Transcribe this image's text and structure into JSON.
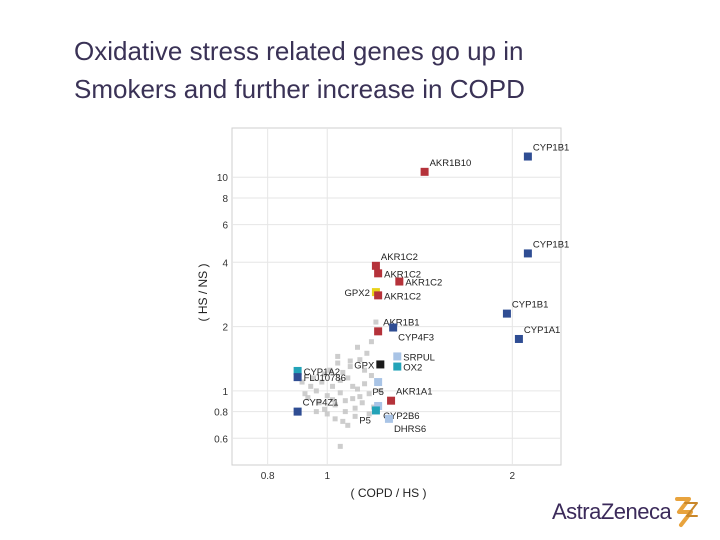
{
  "slide": {
    "title_line1": "Oxidative stress related genes go up in",
    "title_line2": "Smokers and further increase in COPD"
  },
  "brand": {
    "logo_text": "AstraZeneca",
    "accent_color": "#e8a33d",
    "text_color": "#3b2a5a"
  },
  "colors": {
    "red": "#b5323a",
    "blue": "#2f4d93",
    "light_blue": "#a9c4e6",
    "teal": "#23a3b8",
    "yellow": "#e8d21a",
    "black": "#1a1a1a",
    "gray": "#c4c4c4"
  },
  "chart_data": {
    "type": "scatter",
    "title": "",
    "xlabel": "( COPD / HS )",
    "ylabel": "( HS / NS )",
    "xscale": "log",
    "yscale": "log",
    "xlim": [
      0.7,
      2.4
    ],
    "ylim": [
      0.45,
      17
    ],
    "xticks": [
      0.8,
      1,
      2
    ],
    "xtick_labels": [
      "0.8",
      "1",
      "2"
    ],
    "yticks": [
      0.6,
      0.8,
      1,
      2,
      4,
      6,
      8,
      10
    ],
    "ytick_labels": [
      "0.6",
      "0.8",
      "1",
      "2",
      "4",
      "6",
      "8",
      "10"
    ],
    "grid": true,
    "highlighted_genes": [
      {
        "label": "CYP1B1",
        "x": 2.12,
        "y": 12.5,
        "color": "blue",
        "label_pos": "above-right"
      },
      {
        "label": "AKR1B10",
        "x": 1.44,
        "y": 10.6,
        "color": "red",
        "label_pos": "above-right"
      },
      {
        "label": "CYP1B1",
        "x": 2.12,
        "y": 4.4,
        "color": "blue",
        "label_pos": "above-right"
      },
      {
        "label": "AKR1C2",
        "x": 1.2,
        "y": 3.85,
        "color": "red",
        "label_pos": "above-right"
      },
      {
        "label": "AKR1C2",
        "x": 1.21,
        "y": 3.55,
        "color": "red",
        "label_pos": "right"
      },
      {
        "label": "AKR1C2",
        "x": 1.31,
        "y": 3.25,
        "color": "red",
        "label_pos": "right"
      },
      {
        "label": "GPX2",
        "x": 1.2,
        "y": 2.9,
        "color": "yellow",
        "label_pos": "left"
      },
      {
        "label": "AKR1C2",
        "x": 1.21,
        "y": 2.8,
        "color": "red",
        "label_pos": "right"
      },
      {
        "label": "CYP1B1",
        "x": 1.96,
        "y": 2.3,
        "color": "blue",
        "label_pos": "above-right"
      },
      {
        "label": "AKR1B1",
        "x": 1.21,
        "y": 1.9,
        "color": "red",
        "label_pos": "above-right"
      },
      {
        "label": "CYP4F3",
        "x": 1.28,
        "y": 1.98,
        "color": "blue",
        "label_pos": "below-right"
      },
      {
        "label": "CYP1A1",
        "x": 2.05,
        "y": 1.75,
        "color": "blue",
        "label_pos": "above-right"
      },
      {
        "label": "SRPUL",
        "x": 1.3,
        "y": 1.45,
        "color": "light_blue",
        "label_pos": "right"
      },
      {
        "label": "GPX",
        "x": 1.22,
        "y": 1.33,
        "color": "black",
        "label_pos": "left"
      },
      {
        "label": "OX2",
        "x": 1.3,
        "y": 1.3,
        "color": "teal",
        "label_pos": "right"
      },
      {
        "label": "CYP1A2",
        "x": 0.895,
        "y": 1.24,
        "color": "teal",
        "label_pos": "right"
      },
      {
        "label": "FLJ10786",
        "x": 0.895,
        "y": 1.16,
        "color": "blue",
        "label_pos": "right"
      },
      {
        "label": "P5",
        "x": 1.21,
        "y": 1.1,
        "color": "light_blue",
        "label_pos": "below"
      },
      {
        "label": "AKR1A1",
        "x": 1.27,
        "y": 0.9,
        "color": "red",
        "label_pos": "above-right"
      },
      {
        "label": "CYP4Z1",
        "x": 0.895,
        "y": 0.8,
        "color": "blue",
        "label_pos": "above-right"
      },
      {
        "label": "CYP2B6",
        "x": 1.21,
        "y": 0.85,
        "color": "light_blue",
        "label_pos": "below-right"
      },
      {
        "label": "P5",
        "x": 1.2,
        "y": 0.81,
        "color": "teal",
        "label_pos": "below-left"
      },
      {
        "label": "DHRS6",
        "x": 1.26,
        "y": 0.74,
        "color": "light_blue",
        "label_pos": "below-right"
      }
    ],
    "background_genes": [
      {
        "x": 1.02,
        "y": 1.05
      },
      {
        "x": 1.05,
        "y": 0.98
      },
      {
        "x": 0.98,
        "y": 1.1
      },
      {
        "x": 1.08,
        "y": 1.15
      },
      {
        "x": 1.1,
        "y": 0.92
      },
      {
        "x": 1.0,
        "y": 0.95
      },
      {
        "x": 0.96,
        "y": 1.0
      },
      {
        "x": 1.12,
        "y": 1.02
      },
      {
        "x": 1.06,
        "y": 1.22
      },
      {
        "x": 1.14,
        "y": 0.88
      },
      {
        "x": 1.03,
        "y": 0.86
      },
      {
        "x": 0.93,
        "y": 0.93
      },
      {
        "x": 1.15,
        "y": 1.08
      },
      {
        "x": 1.09,
        "y": 1.3
      },
      {
        "x": 1.17,
        "y": 0.97
      },
      {
        "x": 0.99,
        "y": 0.82
      },
      {
        "x": 1.07,
        "y": 0.8
      },
      {
        "x": 1.01,
        "y": 1.25
      },
      {
        "x": 1.18,
        "y": 1.18
      },
      {
        "x": 0.95,
        "y": 1.15
      },
      {
        "x": 1.11,
        "y": 0.76
      },
      {
        "x": 1.04,
        "y": 1.35
      },
      {
        "x": 0.97,
        "y": 0.88
      },
      {
        "x": 1.13,
        "y": 1.4
      },
      {
        "x": 1.19,
        "y": 0.84
      },
      {
        "x": 1.06,
        "y": 0.72
      },
      {
        "x": 0.94,
        "y": 1.05
      },
      {
        "x": 1.0,
        "y": 0.78
      },
      {
        "x": 1.16,
        "y": 1.5
      },
      {
        "x": 1.08,
        "y": 0.69
      },
      {
        "x": 0.92,
        "y": 0.97
      },
      {
        "x": 1.12,
        "y": 1.6
      },
      {
        "x": 1.03,
        "y": 0.74
      },
      {
        "x": 1.05,
        "y": 1.12
      },
      {
        "x": 1.13,
        "y": 0.94
      },
      {
        "x": 0.99,
        "y": 1.2
      },
      {
        "x": 1.07,
        "y": 0.9
      },
      {
        "x": 1.15,
        "y": 1.25
      },
      {
        "x": 1.1,
        "y": 1.05
      },
      {
        "x": 1.02,
        "y": 0.91
      },
      {
        "x": 1.18,
        "y": 1.7
      },
      {
        "x": 1.05,
        "y": 0.55
      },
      {
        "x": 1.2,
        "y": 2.1
      },
      {
        "x": 0.91,
        "y": 1.1
      },
      {
        "x": 1.22,
        "y": 1.0
      },
      {
        "x": 1.04,
        "y": 1.45
      },
      {
        "x": 0.96,
        "y": 0.8
      },
      {
        "x": 1.17,
        "y": 0.78
      },
      {
        "x": 1.09,
        "y": 1.38
      },
      {
        "x": 1.11,
        "y": 0.83
      }
    ]
  }
}
